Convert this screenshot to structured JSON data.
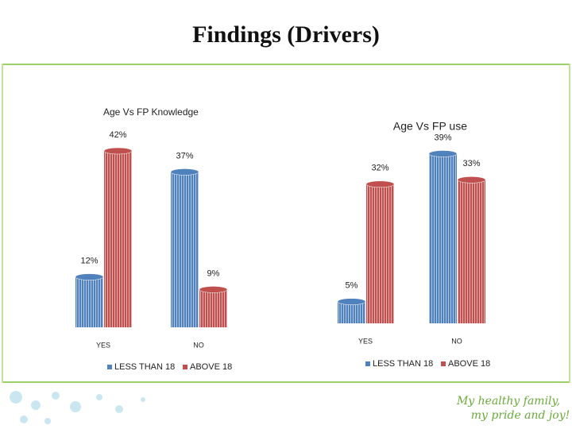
{
  "title": "Findings (Drivers)",
  "logo_text": [
    "My healthy family,",
    "my pride and joy!"
  ],
  "chart_data": [
    {
      "type": "bar",
      "title": "Age Vs FP Knowledge",
      "categories": [
        "YES",
        "NO"
      ],
      "ylim": [
        0,
        42
      ],
      "series": [
        {
          "name": "LESS THAN 18",
          "color": "#4f81bd",
          "values": [
            12,
            37
          ],
          "value_labels": [
            "12%",
            "37%"
          ]
        },
        {
          "name": "ABOVE 18",
          "color": "#c0504d",
          "values": [
            42,
            9
          ],
          "value_labels": [
            "42%",
            "9%"
          ]
        }
      ]
    },
    {
      "type": "bar",
      "title": "Age Vs FP use",
      "categories": [
        "YES",
        "NO"
      ],
      "ylim": [
        0,
        40
      ],
      "series": [
        {
          "name": "LESS THAN 18",
          "color": "#4f81bd",
          "values": [
            5,
            39
          ],
          "value_labels": [
            "5%",
            "39%"
          ]
        },
        {
          "name": "ABOVE 18",
          "color": "#c0504d",
          "values": [
            32,
            33
          ],
          "value_labels": [
            "32%",
            "33%"
          ]
        }
      ]
    }
  ]
}
